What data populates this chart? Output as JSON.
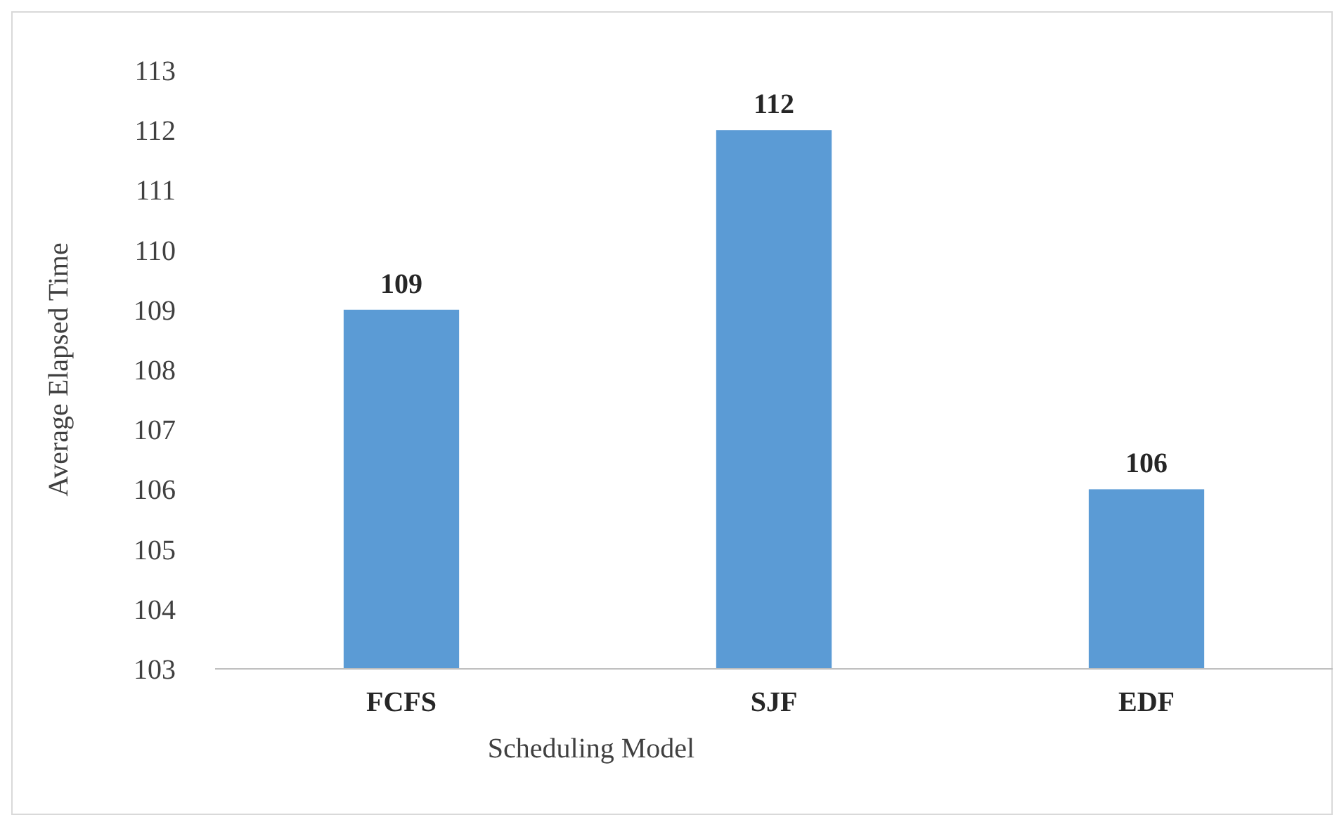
{
  "chart_data": {
    "type": "bar",
    "xlabel": "Scheduling Model",
    "ylabel": "Average Elapsed Time",
    "categories": [
      "FCFS",
      "SJF",
      "EDF"
    ],
    "values": [
      109,
      112,
      106
    ],
    "color": "#5b9bd5",
    "ylim": [
      103,
      113
    ],
    "yticks": [
      103,
      104,
      105,
      106,
      107,
      108,
      109,
      110,
      111,
      112,
      113
    ],
    "grid": false,
    "data_labels": true
  }
}
